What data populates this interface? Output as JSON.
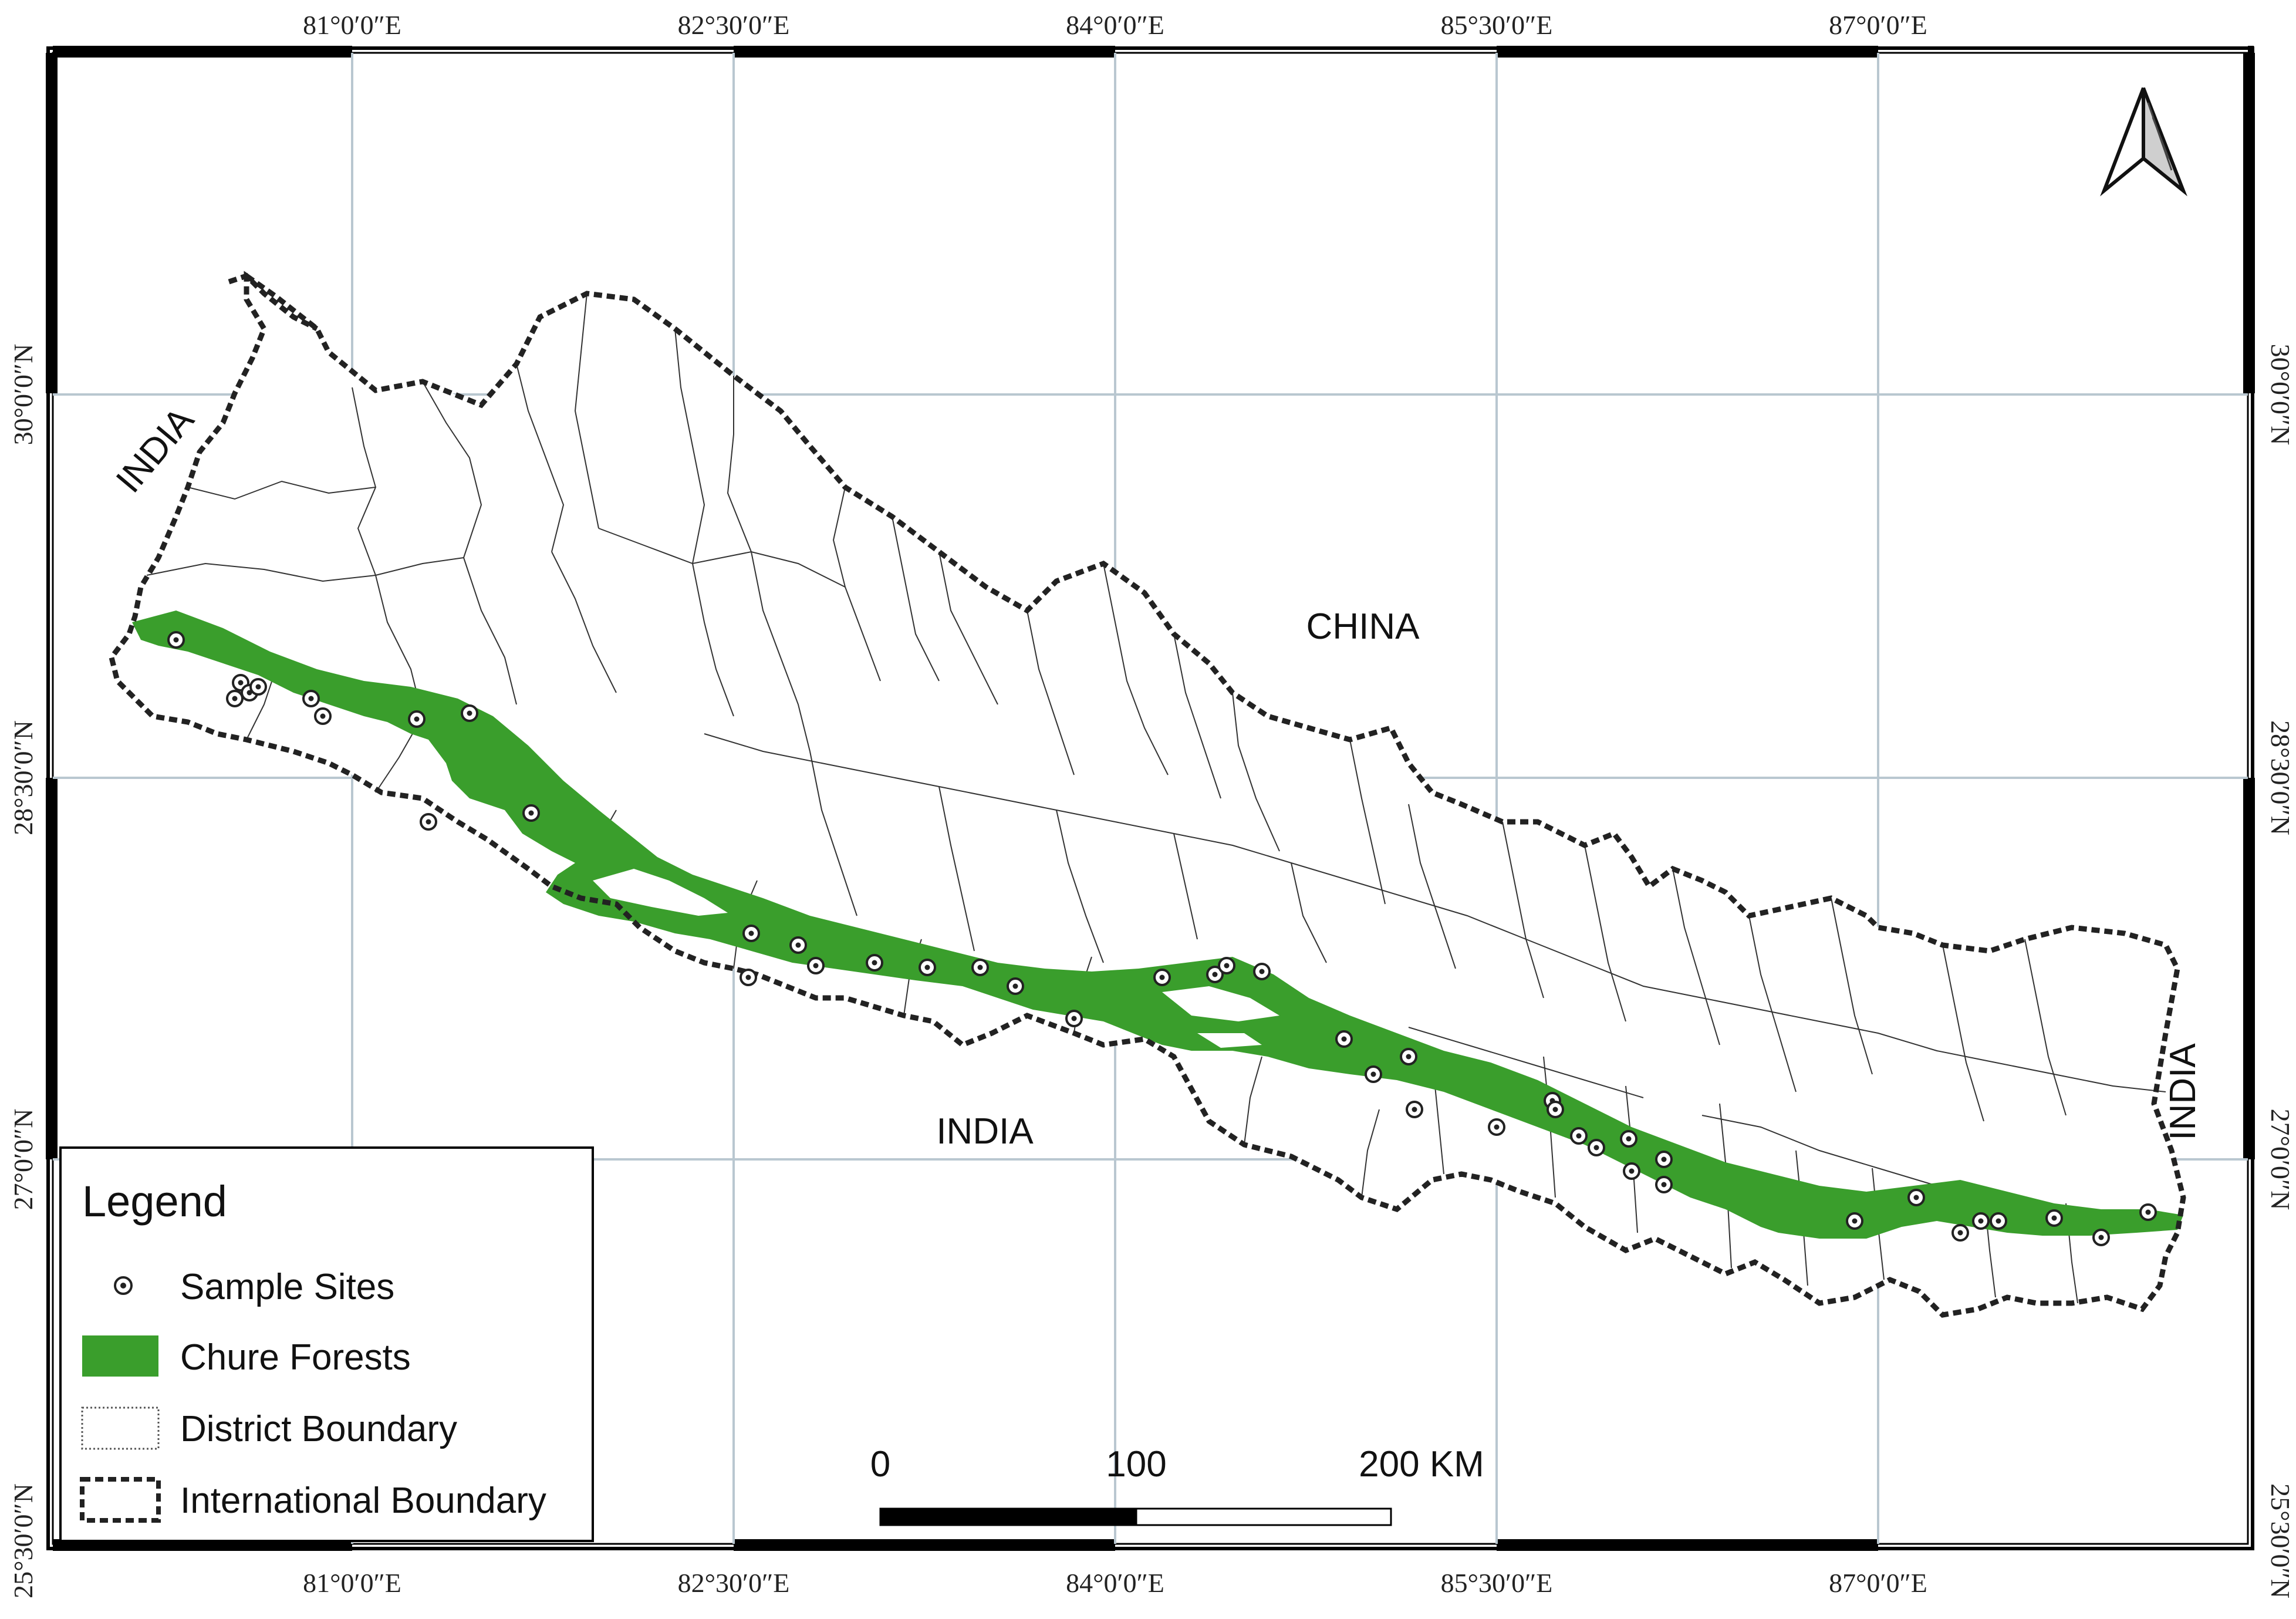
{
  "map": {
    "longitude_labels": [
      "81°0′0″E",
      "82°30′0″E",
      "84°0′0″E",
      "85°30′0″E",
      "87°0′0″E"
    ],
    "latitude_labels": [
      "30°0′0″N",
      "28°30′0″N",
      "27°0′0″N",
      "25°30′0″N"
    ],
    "countries": {
      "india_west": "INDIA",
      "china": "CHINA",
      "india_south": "INDIA",
      "india_east": "INDIA"
    },
    "legend": {
      "title": "Legend",
      "items": [
        "Sample Sites",
        "Chure Forests",
        "District Boundary",
        "International Boundary"
      ]
    },
    "scale_bar": {
      "labels": [
        "0",
        "100",
        "200 KM"
      ]
    },
    "north_arrow": "north-arrow-icon",
    "colors": {
      "forest": "#3a9e2c",
      "grid": "#b9c7d0",
      "boundary": "#222222",
      "frame": "#000000"
    }
  }
}
